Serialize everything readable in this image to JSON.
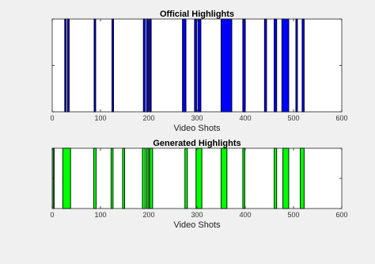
{
  "chart_data": [
    {
      "type": "bar",
      "title": "Official Highlights",
      "xlabel": "Video Shots",
      "ylabel": "",
      "xlim": [
        0,
        600
      ],
      "ylim": [
        0,
        1
      ],
      "x_ticks": [
        "0",
        "100",
        "200",
        "300",
        "400",
        "500",
        "600"
      ],
      "grid": false,
      "bar_color": "#0000ff",
      "edge_color": "#000033",
      "segments": [
        [
          26,
          29
        ],
        [
          32,
          35
        ],
        [
          87,
          90
        ],
        [
          124,
          127
        ],
        [
          189,
          193
        ],
        [
          196,
          200
        ],
        [
          202,
          205
        ],
        [
          270,
          277
        ],
        [
          295,
          299
        ],
        [
          302,
          308
        ],
        [
          350,
          372
        ],
        [
          395,
          400
        ],
        [
          440,
          444
        ],
        [
          460,
          465
        ],
        [
          476,
          490
        ],
        [
          505,
          508
        ],
        [
          518,
          522
        ]
      ]
    },
    {
      "type": "bar",
      "title": "Generated Highlights",
      "xlabel": "Video Shots",
      "ylabel": "",
      "xlim": [
        0,
        600
      ],
      "ylim": [
        0,
        1
      ],
      "x_ticks": [
        "0",
        "100",
        "200",
        "300",
        "400",
        "500",
        "600"
      ],
      "grid": false,
      "bar_color": "#00ff00",
      "edge_color": "#003300",
      "segments": [
        [
          2,
          4
        ],
        [
          22,
          38
        ],
        [
          86,
          91
        ],
        [
          122,
          126
        ],
        [
          146,
          150
        ],
        [
          187,
          193
        ],
        [
          196,
          200
        ],
        [
          202,
          208
        ],
        [
          275,
          280
        ],
        [
          298,
          310
        ],
        [
          350,
          362
        ],
        [
          395,
          399
        ],
        [
          460,
          465
        ],
        [
          478,
          490
        ],
        [
          514,
          522
        ]
      ]
    }
  ]
}
